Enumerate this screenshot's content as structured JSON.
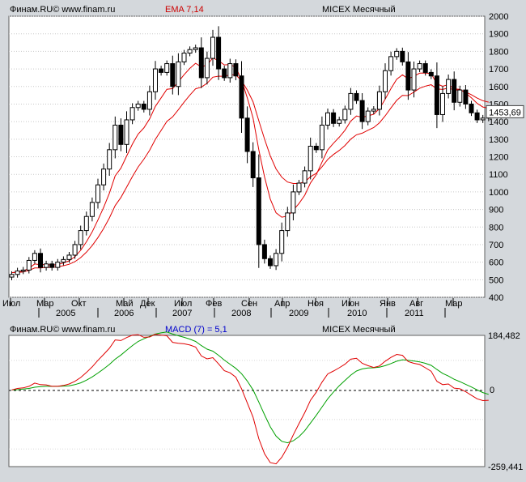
{
  "top_panel": {
    "source": "Финам.RU© www.finam.ru",
    "indicator": "EMA 7,14",
    "instrument": "MICEX Месячный",
    "last_price": "1453,69"
  },
  "bottom_panel": {
    "source": "Финам.RU© www.finam.ru",
    "indicator": "MACD (7) = 5,1",
    "instrument": "MICEX Месячный",
    "y_top_label": "184,482",
    "y_zero_label": "0",
    "y_bottom_label": "-259,441"
  },
  "colors": {
    "background": "#d4d8dc",
    "plot_bg": "#ffffff",
    "ema_line": "#e00000",
    "macd_line": "#e00000",
    "signal_line": "#00a000",
    "indicator_title_top": "#cc0000",
    "indicator_title_bottom": "#0000cc"
  },
  "chart_data": [
    {
      "type": "candlestick",
      "title": "MICEX Месячный",
      "indicator": "EMA 7,14",
      "ylim": [
        400,
        2000
      ],
      "y_ticks": [
        400,
        500,
        600,
        700,
        800,
        900,
        1000,
        1100,
        1200,
        1300,
        1400,
        1500,
        1600,
        1700,
        1800,
        1900,
        2000
      ],
      "x_month_labels": [
        "Июл",
        "Мар",
        "Окт",
        "Май",
        "Дек",
        "Июл",
        "Фев",
        "Сен",
        "Апр",
        "Ноя",
        "Июн",
        "Янв",
        "Авг",
        "Мар"
      ],
      "x_year_labels": [
        "2005",
        "2006",
        "2007",
        "2008",
        "2009",
        "2010",
        "2011"
      ],
      "close": [
        530,
        550,
        555,
        610,
        650,
        570,
        590,
        570,
        600,
        615,
        640,
        700,
        780,
        860,
        940,
        1040,
        1130,
        1240,
        1380,
        1270,
        1410,
        1480,
        1500,
        1470,
        1570,
        1700,
        1680,
        1730,
        1600,
        1740,
        1790,
        1810,
        1820,
        1650,
        1760,
        1880,
        1700,
        1650,
        1730,
        1660,
        1420,
        1230,
        1080,
        700,
        620,
        580,
        650,
        780,
        880,
        1000,
        1050,
        1120,
        1260,
        1240,
        1380,
        1450,
        1390,
        1410,
        1470,
        1560,
        1520,
        1400,
        1460,
        1470,
        1570,
        1690,
        1770,
        1800,
        1740,
        1580,
        1700,
        1730,
        1680,
        1660,
        1440,
        1560,
        1640,
        1510,
        1580,
        1500,
        1450,
        1410,
        1420,
        1454
      ],
      "ema_fast": [
        540,
        545,
        550,
        565,
        590,
        585,
        587,
        582,
        587,
        595,
        608,
        631,
        668,
        716,
        772,
        840,
        912,
        993,
        1091,
        1135,
        1204,
        1272,
        1329,
        1364,
        1416,
        1487,
        1535,
        1584,
        1588,
        1626,
        1667,
        1703,
        1732,
        1711,
        1723,
        1762,
        1747,
        1723,
        1725,
        1709,
        1637,
        1535,
        1421,
        1240,
        1085,
        959,
        881,
        856,
        862,
        896,
        934,
        981,
        1051,
        1098,
        1169,
        1239,
        1277,
        1311,
        1351,
        1403,
        1432,
        1424,
        1433,
        1442,
        1474,
        1528,
        1588,
        1641,
        1666,
        1644,
        1658,
        1676,
        1677,
        1673,
        1615,
        1601,
        1611,
        1586,
        1584,
        1563,
        1535,
        1504,
        1483,
        1476
      ],
      "ema_slow": [
        540,
        542,
        544,
        553,
        567,
        567,
        570,
        570,
        574,
        580,
        588,
        603,
        626,
        657,
        694,
        740,
        792,
        852,
        922,
        968,
        1027,
        1087,
        1142,
        1186,
        1237,
        1299,
        1350,
        1401,
        1427,
        1468,
        1511,
        1551,
        1587,
        1596,
        1618,
        1653,
        1659,
        1658,
        1667,
        1666,
        1633,
        1579,
        1513,
        1405,
        1301,
        1205,
        1131,
        1084,
        1056,
        1048,
        1048,
        1058,
        1086,
        1106,
        1143,
        1185,
        1213,
        1236,
        1264,
        1300,
        1325,
        1334,
        1351,
        1366,
        1393,
        1433,
        1478,
        1521,
        1549,
        1548,
        1568,
        1590,
        1602,
        1610,
        1586,
        1583,
        1591,
        1580,
        1580,
        1569,
        1553,
        1534,
        1519,
        1511
      ]
    },
    {
      "type": "line",
      "title": "MICEX Месячный",
      "indicator": "MACD (7) = 5,1",
      "ylim": [
        -259.441,
        184.482
      ],
      "y_ticks": [
        184.482,
        0,
        -259.441
      ],
      "series": [
        {
          "values": [
            0,
            5,
            7,
            12,
            23,
            18,
            17,
            12,
            12,
            15,
            20,
            29,
            42,
            59,
            78,
            100,
            120,
            141,
            169,
            167,
            177,
            185,
            187,
            178,
            179,
            188,
            185,
            183,
            161,
            158,
            156,
            152,
            145,
            115,
            105,
            109,
            88,
            65,
            58,
            43,
            4,
            -44,
            -92,
            -165,
            -216,
            -246,
            -250,
            -228,
            -194,
            -152,
            -114,
            -77,
            -35,
            -8,
            26,
            54,
            64,
            75,
            87,
            104,
            107,
            90,
            82,
            76,
            81,
            97,
            110,
            120,
            117,
            96,
            90,
            86,
            75,
            63,
            29,
            18,
            20,
            6,
            4,
            -6,
            -18,
            -30,
            -36,
            -35
          ]
        },
        {
          "values": [
            0,
            1,
            3,
            5,
            9,
            11,
            12,
            12,
            12,
            13,
            14,
            18,
            24,
            33,
            44,
            57,
            71,
            86,
            104,
            118,
            134,
            150,
            164,
            173,
            181,
            189,
            193,
            196,
            189,
            183,
            178,
            172,
            164,
            150,
            138,
            131,
            117,
            101,
            87,
            73,
            55,
            30,
            0,
            -41,
            -84,
            -125,
            -156,
            -174,
            -179,
            -172,
            -158,
            -138,
            -112,
            -86,
            -58,
            -30,
            -7,
            14,
            32,
            50,
            64,
            71,
            74,
            75,
            77,
            82,
            89,
            97,
            102,
            100,
            98,
            95,
            90,
            83,
            69,
            56,
            47,
            36,
            28,
            19,
            10,
            0,
            -9,
            -15
          ]
        }
      ]
    }
  ]
}
